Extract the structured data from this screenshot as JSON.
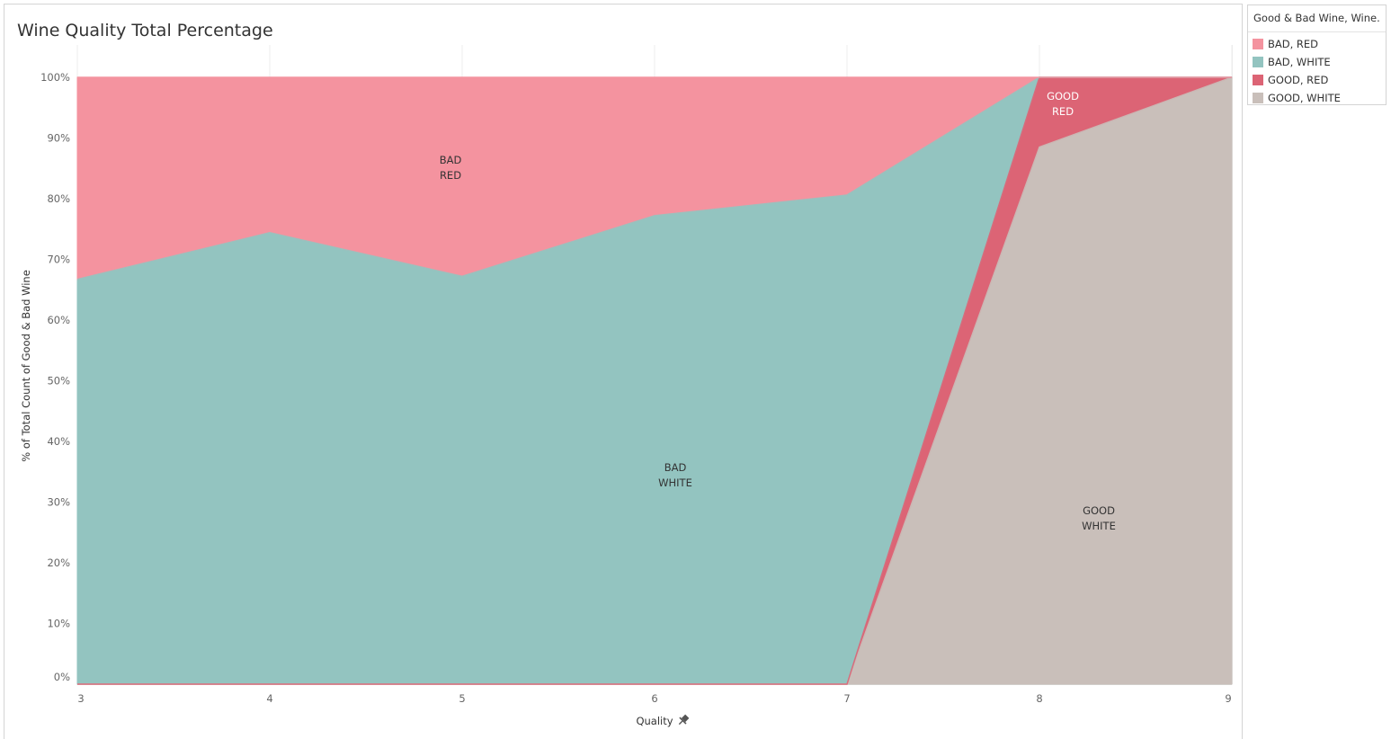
{
  "title": "Wine Quality Total Percentage",
  "legend": {
    "title": "Good & Bad Wine, Wine...",
    "items": [
      {
        "label": "BAD, RED",
        "color": "#f4939f"
      },
      {
        "label": "BAD, WHITE",
        "color": "#93c4c0"
      },
      {
        "label": "GOOD, RED",
        "color": "#dc6475"
      },
      {
        "label": "GOOD, WHITE",
        "color": "#c9bfba"
      }
    ]
  },
  "chart_data": {
    "type": "area",
    "stacked": true,
    "x": [
      3,
      4,
      5,
      6,
      7,
      8,
      9
    ],
    "x_tick_labels": [
      "3",
      "4",
      "5",
      "6",
      "7",
      "8",
      "9"
    ],
    "xlabel": "Quality",
    "ylabel": "% of Total Count of Good & Bad Wine",
    "y_tick_labels": [
      "0%",
      "10%",
      "20%",
      "30%",
      "40%",
      "50%",
      "60%",
      "70%",
      "80%",
      "90%",
      "100%"
    ],
    "ylim": [
      0,
      100
    ],
    "grid": {
      "vertical": true,
      "horizontal": false
    },
    "legend_position": "right",
    "series": [
      {
        "name": "GOOD, WHITE",
        "color": "#c9bfba",
        "values": [
          0,
          0,
          0,
          0,
          0,
          88.5,
          100
        ],
        "label_lines": [
          "GOOD",
          "WHITE"
        ]
      },
      {
        "name": "GOOD, RED",
        "color": "#dc6475",
        "values": [
          0,
          0,
          0,
          0,
          0,
          11.5,
          0
        ],
        "label_lines": [
          "GOOD",
          "RED"
        ]
      },
      {
        "name": "BAD, WHITE",
        "color": "#93c4c0",
        "values": [
          66.7,
          74.4,
          67.2,
          77.2,
          80.6,
          0,
          0
        ],
        "label_lines": [
          "BAD",
          "WHITE"
        ]
      },
      {
        "name": "BAD, RED",
        "color": "#f4939f",
        "values": [
          33.3,
          25.6,
          32.8,
          22.8,
          19.4,
          0,
          0
        ],
        "label_lines": [
          "BAD",
          "RED"
        ]
      }
    ]
  }
}
